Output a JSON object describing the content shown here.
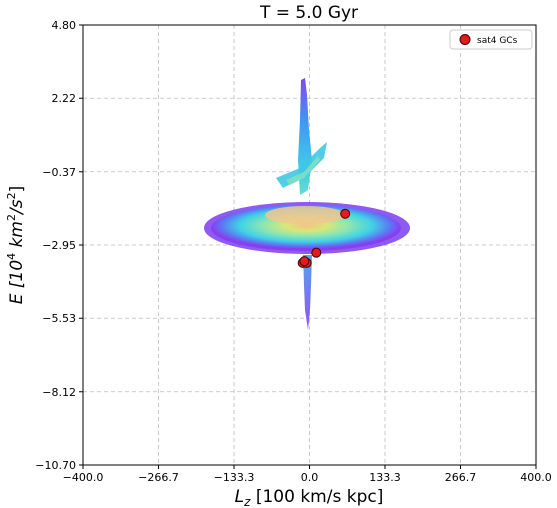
{
  "chart_data": {
    "type": "scatter",
    "title": "T = 5.0 Gyr",
    "xlabel_main": "L",
    "xlabel_sub": "z",
    "xlabel_rest": " [100 km/s kpc]",
    "ylabel_main": "E [10",
    "ylabel_sup1": "4",
    "ylabel_mid": " km",
    "ylabel_sup2": "2",
    "ylabel_end": "/s",
    "ylabel_sup3": "2",
    "ylabel_close": "]",
    "xlim": [
      -400.0,
      400.0
    ],
    "ylim": [
      -10.7,
      4.8
    ],
    "x_ticks": [
      "-400.0",
      "-266.7",
      "-133.3",
      "0.0",
      "133.3",
      "266.7",
      "400.0"
    ],
    "x_tick_values": [
      -400.0,
      -266.7,
      -133.3,
      0.0,
      133.3,
      266.7,
      400.0
    ],
    "y_ticks": [
      "4.80",
      "2.22",
      "-0.37",
      "-2.95",
      "-5.53",
      "-8.12",
      "-10.70"
    ],
    "y_tick_values": [
      4.8,
      2.22,
      -0.37,
      -2.95,
      -5.53,
      -8.12,
      -10.7
    ],
    "grid": true,
    "legend_position": "top-right",
    "series": [
      {
        "name": "sat4 GCs",
        "color": "#e41a1c",
        "x": [
          63,
          12,
          -12,
          -5,
          -9
        ],
        "y": [
          -1.85,
          -3.22,
          -3.58,
          -3.58,
          -3.52
        ]
      }
    ],
    "background_density": "2D histogram of particle E vs Lz (jet colormap: purple/blue outer, cyan/green, orange core)"
  }
}
